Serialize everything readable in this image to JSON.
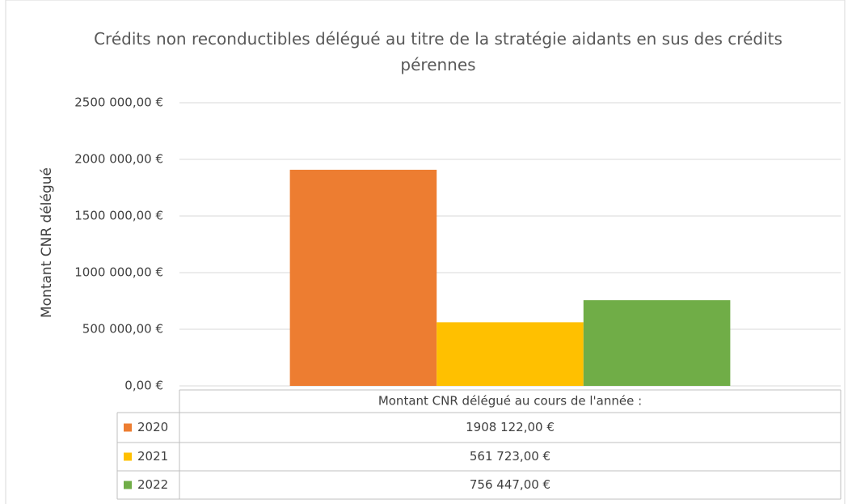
{
  "chart_data": {
    "type": "bar",
    "title": "Crédits non reconductibles délégué au titre de la stratégie aidants en sus des crédits pérennes",
    "y_label": "Montant CNR délégué",
    "categories": [
      "Montant CNR délégué au cours de l'année :"
    ],
    "series": [
      {
        "name": "2020",
        "color": "#ed7d31",
        "values": [
          1908122
        ],
        "value_labels": [
          "1908 122,00 €"
        ]
      },
      {
        "name": "2021",
        "color": "#ffc000",
        "values": [
          561723
        ],
        "value_labels": [
          "561 723,00 €"
        ]
      },
      {
        "name": "2022",
        "color": "#70ad47",
        "values": [
          756447
        ],
        "value_labels": [
          "756 447,00 €"
        ]
      }
    ],
    "ylim": [
      0,
      2500000
    ],
    "yticks": [
      {
        "value": 0,
        "label": "0,00 €"
      },
      {
        "value": 500000,
        "label": "500 000,00 €"
      },
      {
        "value": 1000000,
        "label": "1000 000,00 €"
      },
      {
        "value": 1500000,
        "label": "1500 000,00 €"
      },
      {
        "value": 2000000,
        "label": "2000 000,00 €"
      },
      {
        "value": 2500000,
        "label": "2500 000,00 €"
      }
    ],
    "grid": true
  }
}
